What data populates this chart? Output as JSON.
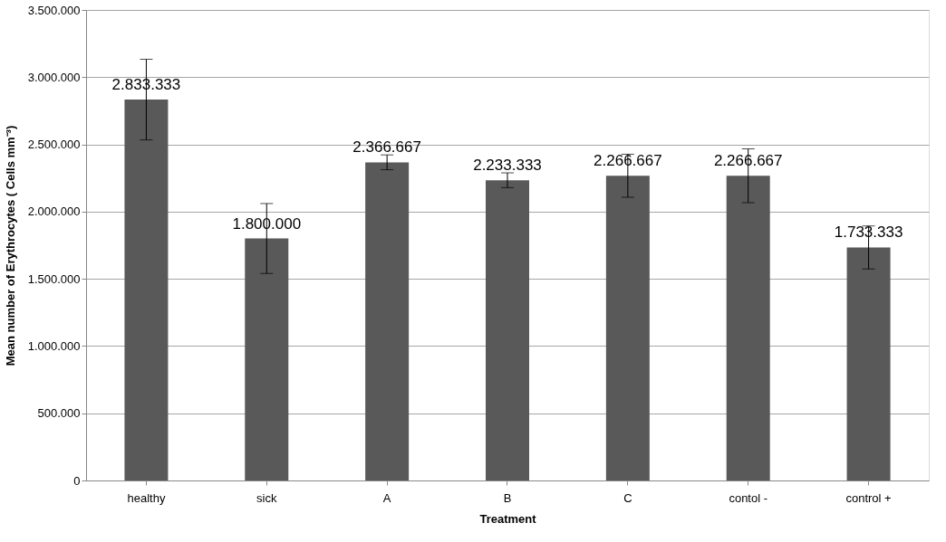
{
  "chart_data": {
    "type": "bar",
    "xlabel": "Treatment",
    "ylabel": "Mean number of  Erythrocytes ( Cells mm⁻³)",
    "categories": [
      "healthy",
      "sick",
      "A",
      "B",
      "C",
      "contol  -",
      "control +"
    ],
    "values": [
      2833333,
      1800000,
      2366667,
      2233333,
      2266667,
      2266667,
      1733333
    ],
    "errors": [
      300000,
      260000,
      55000,
      55000,
      160000,
      200000,
      160000
    ],
    "color": "#595959",
    "ylim": [
      0,
      3500000
    ],
    "yticks": [
      {
        "value": 0,
        "label": "0"
      },
      {
        "value": 500000,
        "label": "500.000"
      },
      {
        "value": 1000000,
        "label": "1.000.000"
      },
      {
        "value": 1500000,
        "label": "1.500.000"
      },
      {
        "value": 2000000,
        "label": "2.000.000"
      },
      {
        "value": 2500000,
        "label": "2.500.000"
      },
      {
        "value": 3000000,
        "label": "3.000.000"
      },
      {
        "value": 3500000,
        "label": "3.500.000"
      }
    ],
    "value_labels": [
      "2.833.333",
      "1.800.000",
      "2.366.667",
      "2.233.333",
      "2.266.667",
      "2.266.667",
      "1.733.333"
    ],
    "grid": "y"
  }
}
